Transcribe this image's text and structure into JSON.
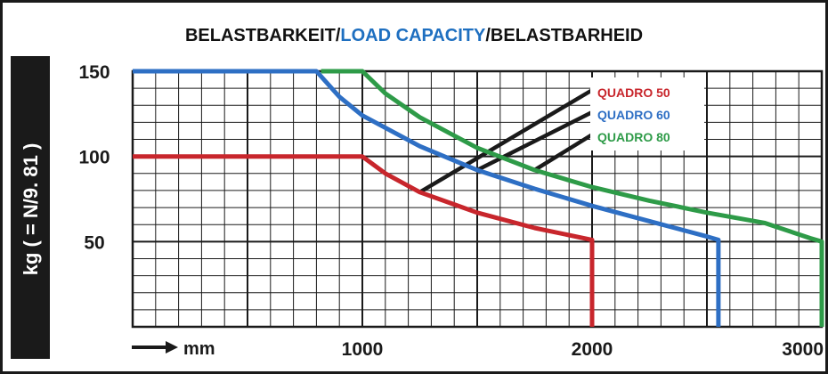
{
  "chart_data": {
    "type": "line",
    "title": {
      "parts": [
        {
          "text": "BELASTBARKEIT/",
          "color": "#111111"
        },
        {
          "text": "LOAD CAPACITY",
          "color": "#1e6fc0"
        },
        {
          "text": "/BELASTBARHEID",
          "color": "#111111"
        }
      ]
    },
    "ylabel": "kg ( = N/9. 81 )",
    "xlabel": "mm",
    "xlim": [
      0,
      3000
    ],
    "ylim": [
      0,
      150
    ],
    "grid": true,
    "x_ticks": [
      {
        "value": 1000,
        "label": "1000"
      },
      {
        "value": 2000,
        "label": "2000"
      },
      {
        "value": 3000,
        "label": "3000"
      }
    ],
    "y_ticks": [
      {
        "value": 50,
        "label": "50"
      },
      {
        "value": 100,
        "label": "100"
      },
      {
        "value": 150,
        "label": "150"
      }
    ],
    "legend_placement": "top-right",
    "series": [
      {
        "name": "QUADRO 50",
        "color": "#c8262c",
        "points": [
          [
            0,
            100
          ],
          [
            1000,
            100
          ],
          [
            1100,
            90
          ],
          [
            1250,
            79
          ],
          [
            1500,
            67
          ],
          [
            1750,
            58
          ],
          [
            2000,
            51
          ],
          [
            2000,
            0
          ]
        ]
      },
      {
        "name": "QUADRO 60",
        "color": "#2e6fc4",
        "points": [
          [
            0,
            150
          ],
          [
            800,
            150
          ],
          [
            900,
            135
          ],
          [
            1000,
            124
          ],
          [
            1250,
            106
          ],
          [
            1500,
            92
          ],
          [
            1750,
            81
          ],
          [
            2000,
            71
          ],
          [
            2250,
            62
          ],
          [
            2500,
            53
          ],
          [
            2550,
            51
          ],
          [
            2550,
            0
          ]
        ]
      },
      {
        "name": "QUADRO 80",
        "color": "#2e9b48",
        "points": [
          [
            820,
            150
          ],
          [
            1000,
            150
          ],
          [
            1100,
            137
          ],
          [
            1250,
            123
          ],
          [
            1500,
            105
          ],
          [
            1750,
            92
          ],
          [
            2000,
            82
          ],
          [
            2250,
            74
          ],
          [
            2500,
            67
          ],
          [
            2750,
            61
          ],
          [
            2950,
            52
          ],
          [
            3000,
            50
          ],
          [
            3000,
            0
          ]
        ]
      }
    ],
    "leader_color": "#1a1a1a"
  }
}
